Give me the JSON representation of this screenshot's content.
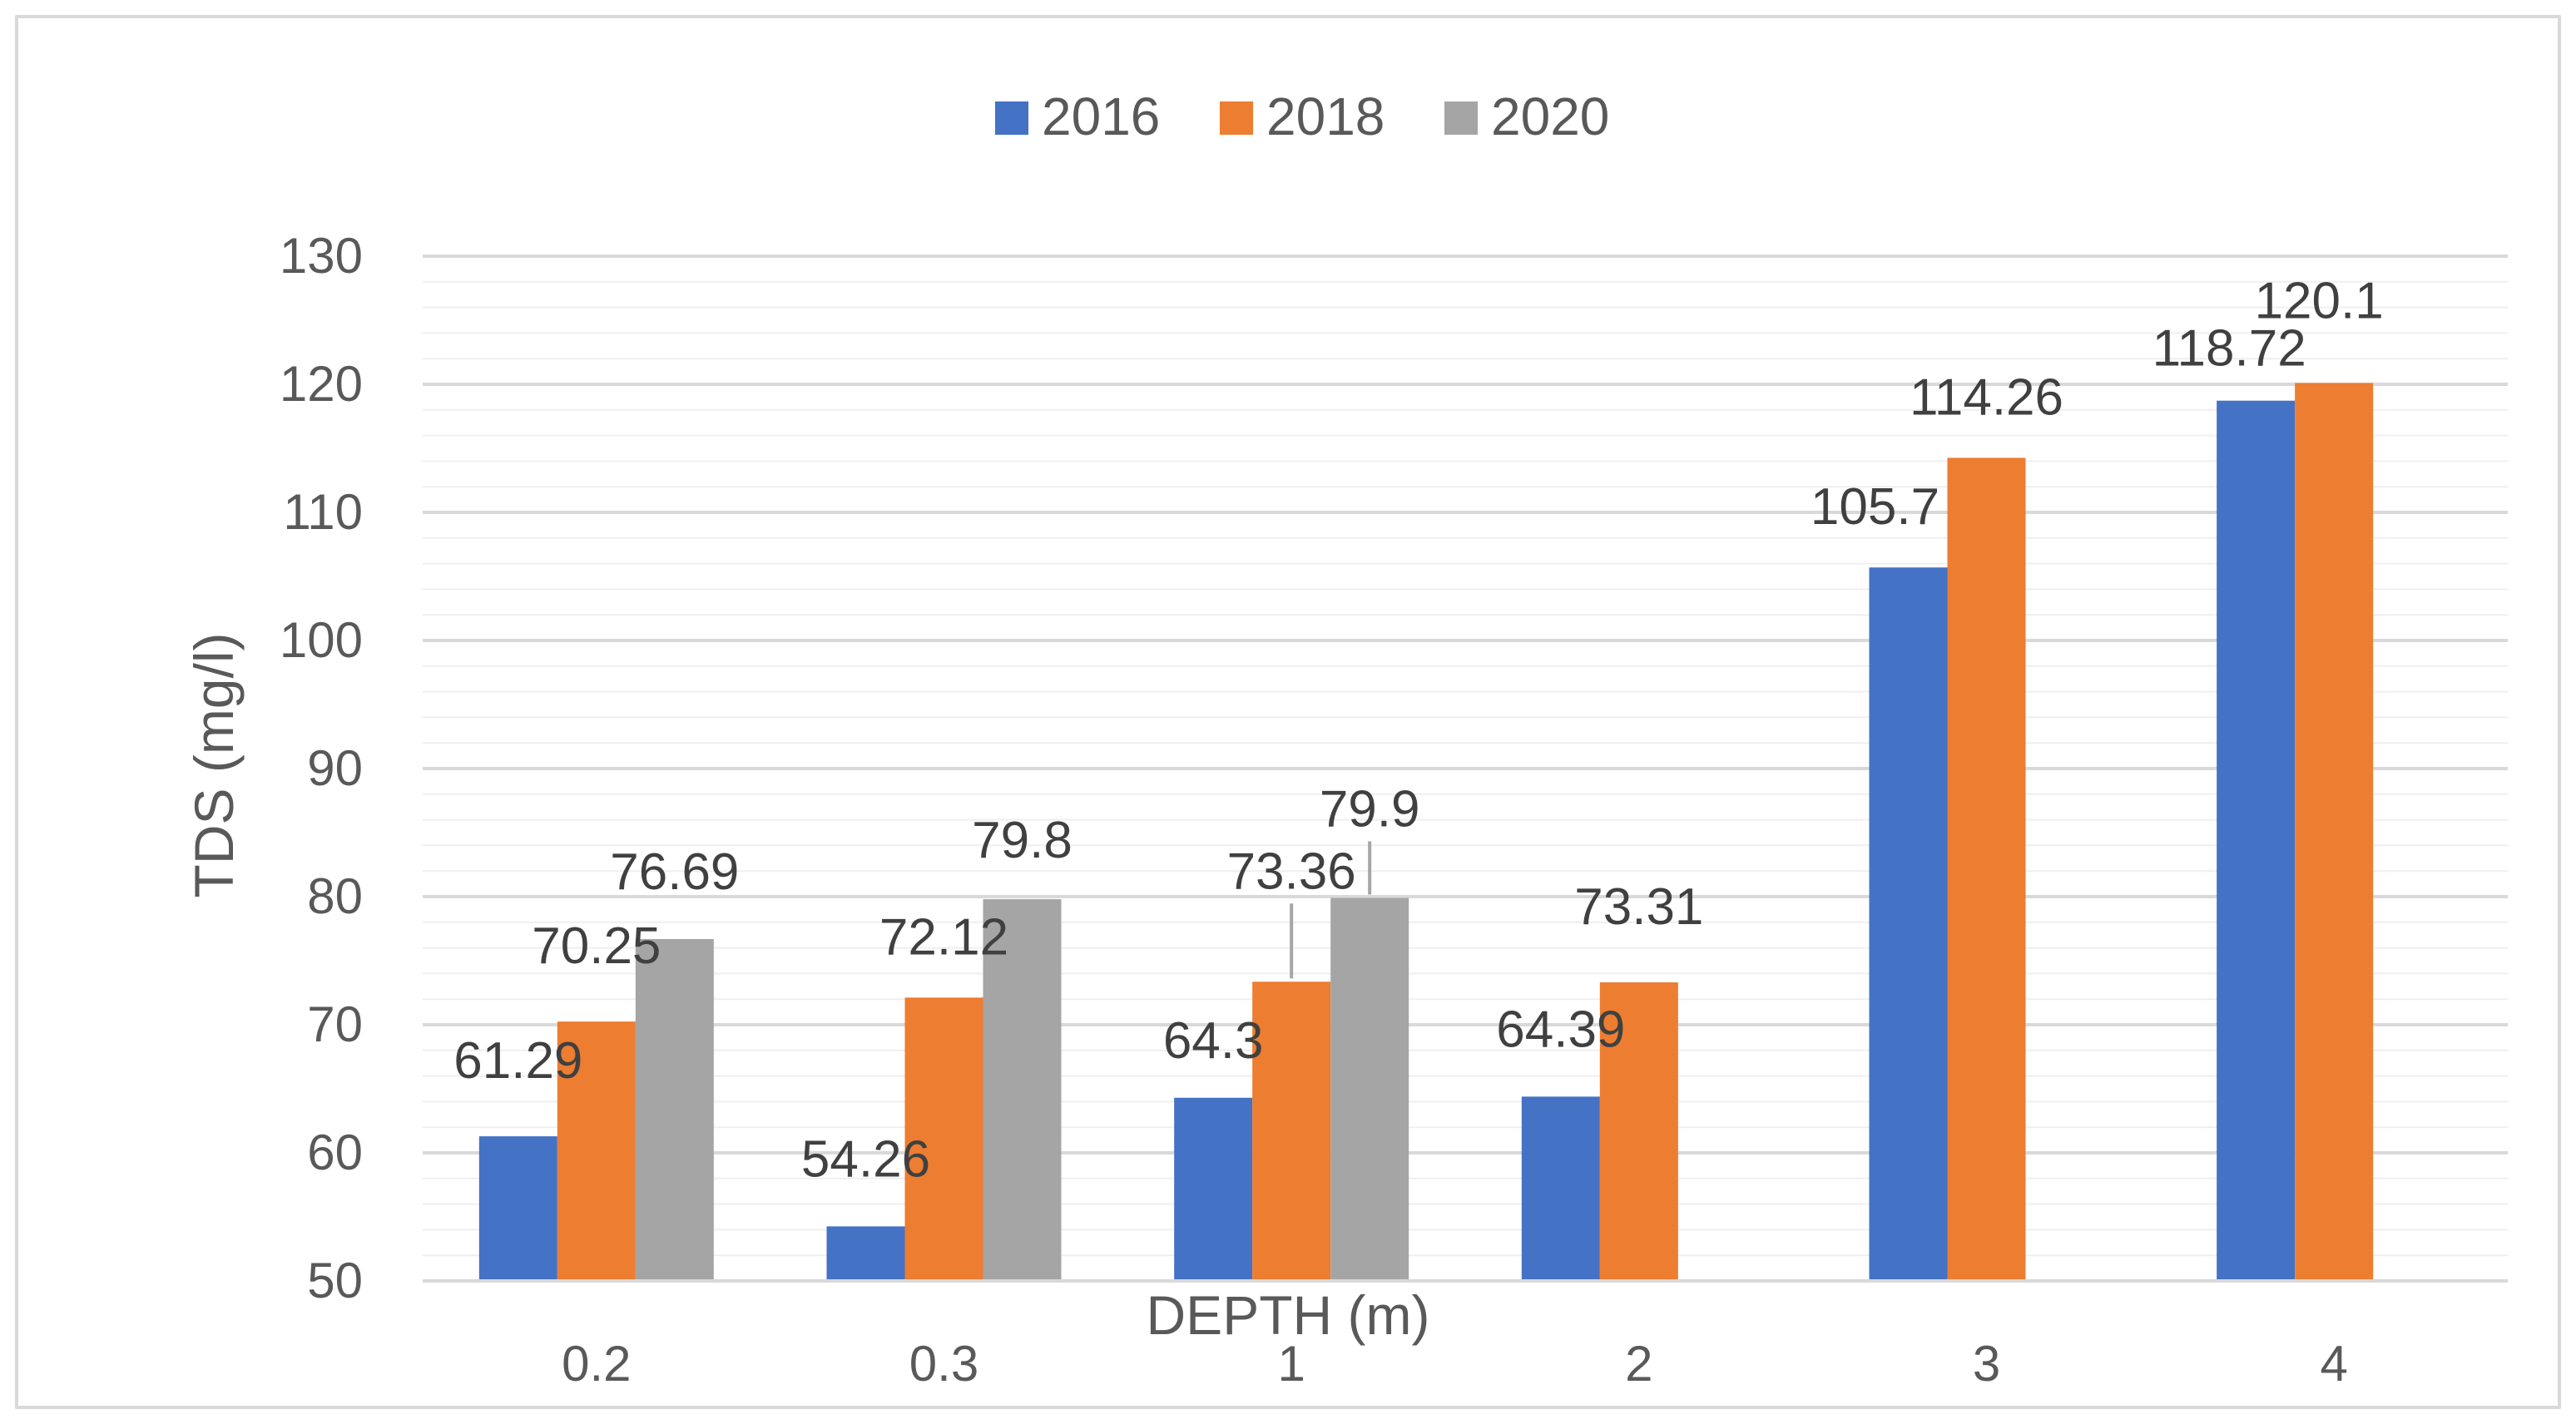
{
  "chart_data": {
    "type": "bar",
    "categories": [
      "0.2",
      "0.3",
      "1",
      "2",
      "3",
      "4"
    ],
    "series": [
      {
        "name": "2016",
        "values": [
          61.29,
          54.26,
          64.3,
          64.39,
          105.7,
          118.72
        ],
        "labels": [
          "61.29",
          "54.26",
          "64.3",
          "64.39",
          "105.7",
          "118.72"
        ]
      },
      {
        "name": "2018",
        "values": [
          70.25,
          72.12,
          73.36,
          73.31,
          114.26,
          120.1
        ],
        "labels": [
          "70.25",
          "72.12",
          "73.36",
          "73.31",
          "114.26",
          "120.1"
        ]
      },
      {
        "name": "2020",
        "values": [
          76.69,
          79.8,
          79.9,
          null,
          null,
          null
        ],
        "labels": [
          "76.69",
          "79.8",
          "79.9",
          "",
          "",
          ""
        ]
      }
    ],
    "colors": [
      "#4472C4",
      "#ED7D31",
      "#A5A5A5"
    ],
    "xlabel": "DEPTH (m)",
    "ylabel": "TDS (mg/l)",
    "ylim": [
      50,
      130
    ],
    "yticks": [
      50,
      60,
      70,
      80,
      90,
      100,
      110,
      120,
      130
    ],
    "ytick_labels": [
      "50",
      "60",
      "70",
      "80",
      "90",
      "100",
      "110",
      "120",
      "130"
    ],
    "legend_position": "top-center",
    "grid": true
  }
}
